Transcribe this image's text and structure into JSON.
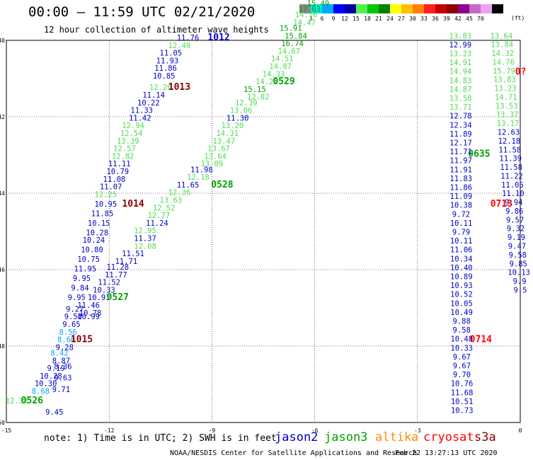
{
  "title": "00:00 – 11:59 UTC 02/21/2020",
  "subtitle": "12 hour collection of altimeter wave heights",
  "colorbar": {
    "colors": [
      "#888888",
      "#00e8e8",
      "#00a8ff",
      "#0000ff",
      "#0000a0",
      "#50f050",
      "#00c800",
      "#008000",
      "#ffff00",
      "#ffc000",
      "#ff8000",
      "#ff2020",
      "#c80000",
      "#900000",
      "#900090",
      "#c868c8",
      "#f0a0f0",
      "#000000"
    ],
    "labels": [
      "3",
      "6",
      "9",
      "12",
      "15",
      "18",
      "21",
      "24",
      "27",
      "30",
      "33",
      "36",
      "39",
      "42",
      "45",
      "70"
    ],
    "unit": "(ft)"
  },
  "axes": {
    "x_ticks": [
      "-15",
      "-12",
      "-9",
      "-6",
      "-3",
      "0"
    ],
    "y_ticks": [
      "-40",
      "-42",
      "-44",
      "-46",
      "-48",
      "-50"
    ]
  },
  "satellite_colors": {
    "jason2": "#0000c8",
    "jason3": "#00a000",
    "altika": "#ff8c00",
    "cryosat": "#ff0000",
    "s3a": "#8b0000",
    "jason2_light": "#00a8ff",
    "jason3_light": "#50dc50"
  },
  "tracks": [
    {
      "sat": "jason2",
      "time": "1012",
      "time_at": [
        -8.8,
        -40
      ],
      "points": [
        {
          "v": "11.76",
          "lon": -9.7,
          "lat": -40.0,
          "c": "jason2"
        },
        {
          "v": "12.49",
          "lon": -9.95,
          "lat": -40.2,
          "c": "jason3_light"
        },
        {
          "v": "11.05",
          "lon": -10.2,
          "lat": -40.4,
          "c": "jason2"
        },
        {
          "v": "11.93",
          "lon": -10.3,
          "lat": -40.6,
          "c": "jason2"
        },
        {
          "v": "11.86",
          "lon": -10.35,
          "lat": -40.8,
          "c": "jason2"
        },
        {
          "v": "10.85",
          "lon": -10.4,
          "lat": -41.0,
          "c": "jason2"
        },
        {
          "v": "12.20",
          "lon": -10.5,
          "lat": -41.3,
          "c": "jason3_light"
        },
        {
          "v": "11.14",
          "lon": -10.7,
          "lat": -41.5,
          "c": "jason2"
        },
        {
          "v": "10.22",
          "lon": -10.85,
          "lat": -41.7,
          "c": "jason2"
        },
        {
          "v": "11.33",
          "lon": -11.05,
          "lat": -41.9,
          "c": "jason2"
        },
        {
          "v": "11.42",
          "lon": -11.1,
          "lat": -42.1,
          "c": "jason2"
        },
        {
          "v": "12.94",
          "lon": -11.3,
          "lat": -42.3,
          "c": "jason3_light"
        },
        {
          "v": "12.54",
          "lon": -11.35,
          "lat": -42.5,
          "c": "jason3_light"
        },
        {
          "v": "13.39",
          "lon": -11.45,
          "lat": -42.7,
          "c": "jason3_light"
        },
        {
          "v": "12.57",
          "lon": -11.55,
          "lat": -42.9,
          "c": "jason3_light"
        },
        {
          "v": "12.82",
          "lon": -11.6,
          "lat": -43.1,
          "c": "jason3_light"
        },
        {
          "v": "11.11",
          "lon": -11.7,
          "lat": -43.3,
          "c": "jason2"
        },
        {
          "v": "10.79",
          "lon": -11.75,
          "lat": -43.5,
          "c": "jason2"
        },
        {
          "v": "11.08",
          "lon": -11.85,
          "lat": -43.7,
          "c": "jason2"
        },
        {
          "v": "11.07",
          "lon": -11.95,
          "lat": -43.9,
          "c": "jason2"
        },
        {
          "v": "12.25",
          "lon": -12.1,
          "lat": -44.1,
          "c": "jason3_light"
        },
        {
          "v": "10.95",
          "lon": -12.1,
          "lat": -44.35,
          "c": "jason2"
        },
        {
          "v": "11.85",
          "lon": -12.2,
          "lat": -44.6,
          "c": "jason2"
        },
        {
          "v": "10.15",
          "lon": -12.3,
          "lat": -44.85,
          "c": "jason2"
        },
        {
          "v": "10.28",
          "lon": -12.35,
          "lat": -45.1,
          "c": "jason2"
        },
        {
          "v": "10.24",
          "lon": -12.45,
          "lat": -45.3,
          "c": "jason2"
        },
        {
          "v": "10.80",
          "lon": -12.5,
          "lat": -45.55,
          "c": "jason2"
        },
        {
          "v": "10.75",
          "lon": -12.6,
          "lat": -45.8,
          "c": "jason2"
        },
        {
          "v": "11.95",
          "lon": -12.7,
          "lat": -46.05,
          "c": "jason2"
        },
        {
          "v": "9.95",
          "lon": -12.8,
          "lat": -46.3,
          "c": "jason2"
        },
        {
          "v": "9.84",
          "lon": -12.85,
          "lat": -46.55,
          "c": "jason2"
        },
        {
          "v": "9.95",
          "lon": -12.95,
          "lat": -46.8,
          "c": "jason2"
        },
        {
          "v": "9.27",
          "lon": -13.0,
          "lat": -47.1,
          "c": "jason2"
        },
        {
          "v": "9.50",
          "lon": -13.05,
          "lat": -47.3,
          "c": "jason2"
        },
        {
          "v": "9.65",
          "lon": -13.1,
          "lat": -47.5,
          "c": "jason2"
        },
        {
          "v": "8.56",
          "lon": -13.2,
          "lat": -47.7,
          "c": "jason2_light"
        },
        {
          "v": "8.66",
          "lon": -13.25,
          "lat": -47.9,
          "c": "jason2_light"
        },
        {
          "v": "9.28",
          "lon": -13.3,
          "lat": -48.1,
          "c": "jason2"
        },
        {
          "v": "8.42",
          "lon": -13.45,
          "lat": -48.25,
          "c": "jason2_light"
        },
        {
          "v": "8.87",
          "lon": -13.4,
          "lat": -48.45,
          "c": "jason2"
        },
        {
          "v": "8.36",
          "lon": -13.35,
          "lat": -48.6,
          "c": "jason2"
        },
        {
          "v": "9.19",
          "lon": -13.55,
          "lat": -48.65,
          "c": "jason2"
        },
        {
          "v": "10.28",
          "lon": -13.7,
          "lat": -48.85,
          "c": "jason2"
        },
        {
          "v": "9.63",
          "lon": -13.35,
          "lat": -48.9,
          "c": "jason2"
        },
        {
          "v": "10.30",
          "lon": -13.85,
          "lat": -49.05,
          "c": "jason2"
        },
        {
          "v": "8.68",
          "lon": -14.0,
          "lat": -49.25,
          "c": "jason2_light"
        },
        {
          "v": "9.71",
          "lon": -13.4,
          "lat": -49.2,
          "c": "jason2"
        },
        {
          "v": "12.33",
          "lon": -14.7,
          "lat": -49.5,
          "c": "jason3_light"
        },
        {
          "v": "9.45",
          "lon": -13.6,
          "lat": -49.8,
          "c": "jason2"
        }
      ]
    },
    {
      "sat": "s3a",
      "time": "1013",
      "time_at": [
        -9.95,
        -41.3
      ],
      "points": []
    },
    {
      "sat": "s3a",
      "time": "1014",
      "time_at": [
        -11.3,
        -44.35
      ],
      "points": []
    },
    {
      "sat": "s3a",
      "time": "1015",
      "time_at": [
        -12.8,
        -47.9
      ],
      "points": []
    },
    {
      "sat": "jason3",
      "time": "0526",
      "time_at": [
        -14.25,
        -49.5
      ],
      "points": [
        {
          "v": "11.46",
          "lon": -12.6,
          "lat": -47.0,
          "c": "jason2"
        },
        {
          "v": "10.78",
          "lon": -12.55,
          "lat": -47.2,
          "c": "jason2"
        },
        {
          "v": "10.91",
          "lon": -12.3,
          "lat": -46.8,
          "c": "jason2"
        },
        {
          "v": "10.99",
          "lon": -12.6,
          "lat": -47.3,
          "c": "jason2"
        },
        {
          "v": "10.33",
          "lon": -12.15,
          "lat": -46.6,
          "c": "jason2"
        }
      ]
    },
    {
      "sat": "jason3",
      "time": "0527",
      "time_at": [
        -11.75,
        -46.8
      ],
      "points": [
        {
          "v": "11.52",
          "lon": -12.0,
          "lat": -46.4,
          "c": "jason2"
        },
        {
          "v": "11.77",
          "lon": -11.8,
          "lat": -46.2,
          "c": "jason2"
        },
        {
          "v": "11.28",
          "lon": -11.75,
          "lat": -46.0,
          "c": "jason2"
        },
        {
          "v": "11.71",
          "lon": -11.5,
          "lat": -45.85,
          "c": "jason2"
        },
        {
          "v": "11.51",
          "lon": -11.3,
          "lat": -45.65,
          "c": "jason2"
        },
        {
          "v": "12.08",
          "lon": -10.95,
          "lat": -45.45,
          "c": "jason3_light"
        },
        {
          "v": "11.37",
          "lon": -10.95,
          "lat": -45.25,
          "c": "jason2"
        },
        {
          "v": "12.95",
          "lon": -10.95,
          "lat": -45.05,
          "c": "jason3_light"
        },
        {
          "v": "11.24",
          "lon": -10.6,
          "lat": -44.85,
          "c": "jason2"
        },
        {
          "v": "12.77",
          "lon": -10.55,
          "lat": -44.65,
          "c": "jason3_light"
        },
        {
          "v": "12.52",
          "lon": -10.4,
          "lat": -44.45,
          "c": "jason3_light"
        },
        {
          "v": "13.63",
          "lon": -10.2,
          "lat": -44.25,
          "c": "jason3_light"
        },
        {
          "v": "12.36",
          "lon": -9.95,
          "lat": -44.05,
          "c": "jason3_light"
        },
        {
          "v": "11.65",
          "lon": -9.7,
          "lat": -43.85,
          "c": "jason2"
        },
        {
          "v": "12.18",
          "lon": -9.4,
          "lat": -43.65,
          "c": "jason3_light"
        },
        {
          "v": "11.98",
          "lon": -9.3,
          "lat": -43.45,
          "c": "jason2"
        },
        {
          "v": "13.09",
          "lon": -9.0,
          "lat": -43.3,
          "c": "jason3_light"
        },
        {
          "v": "13.64",
          "lon": -8.9,
          "lat": -43.1,
          "c": "jason3_light"
        },
        {
          "v": "13.67",
          "lon": -8.8,
          "lat": -42.9,
          "c": "jason3_light"
        },
        {
          "v": "13.47",
          "lon": -8.65,
          "lat": -42.7,
          "c": "jason3_light"
        },
        {
          "v": "14.31",
          "lon": -8.55,
          "lat": -42.5,
          "c": "jason3_light"
        },
        {
          "v": "13.20",
          "lon": -8.4,
          "lat": -42.3,
          "c": "jason3_light"
        },
        {
          "v": "11.30",
          "lon": -8.25,
          "lat": -42.1,
          "c": "jason2"
        },
        {
          "v": "13.06",
          "lon": -8.15,
          "lat": -41.9,
          "c": "jason3_light"
        },
        {
          "v": "12.39",
          "lon": -8.0,
          "lat": -41.7,
          "c": "jason3_light"
        }
      ]
    },
    {
      "sat": "jason3",
      "time": "0528",
      "time_at": [
        -8.7,
        -43.85
      ],
      "points": [
        {
          "v": "12.82",
          "lon": -7.65,
          "lat": -41.55,
          "c": "jason3_light"
        },
        {
          "v": "15.15",
          "lon": -7.75,
          "lat": -41.35,
          "c": "jason3"
        },
        {
          "v": "14.22",
          "lon": -7.4,
          "lat": -41.15,
          "c": "jason3_light"
        },
        {
          "v": "14.33",
          "lon": -7.2,
          "lat": -40.95,
          "c": "jason3_light"
        },
        {
          "v": "14.87",
          "lon": -7.0,
          "lat": -40.75,
          "c": "jason3_light"
        },
        {
          "v": "14.51",
          "lon": -6.95,
          "lat": -40.55,
          "c": "jason3_light"
        },
        {
          "v": "14.67",
          "lon": -6.75,
          "lat": -40.35,
          "c": "jason3_light"
        },
        {
          "v": "16.74",
          "lon": -6.65,
          "lat": -40.15,
          "c": "jason3"
        },
        {
          "v": "15.84",
          "lon": -6.55,
          "lat": -39.95,
          "c": "jason3"
        },
        {
          "v": "15.91",
          "lon": -6.7,
          "lat": -39.75,
          "c": "jason3"
        },
        {
          "v": "14.47",
          "lon": -6.3,
          "lat": -39.6,
          "c": "jason3_light"
        },
        {
          "v": "14.76",
          "lon": -6.25,
          "lat": -39.4,
          "c": "jason3_light"
        },
        {
          "v": "17.03",
          "lon": -6.15,
          "lat": -39.25,
          "c": "jason3"
        },
        {
          "v": "15.49",
          "lon": -5.9,
          "lat": -39.1,
          "c": "jason3"
        }
      ]
    },
    {
      "sat": "jason3",
      "time": "0529",
      "time_at": [
        -6.9,
        -41.15
      ],
      "points": []
    },
    {
      "sat": "jason3",
      "time": "0635",
      "time_at": [
        -1.2,
        -43.05
      ],
      "points": []
    },
    {
      "sat": "cryosat",
      "time": "0713",
      "time_at": [
        -0.55,
        -44.35
      ],
      "points": []
    },
    {
      "sat": "cryosat",
      "time": "0714",
      "time_at": [
        -1.15,
        -47.9
      ],
      "points": []
    }
  ],
  "east_pass_a": [
    "13.83",
    "12.99",
    "13.23",
    "14.91",
    "14.94",
    "14.83",
    "14.87",
    "13.58",
    "13.71",
    "12.78",
    "12.34",
    "11.89",
    "12.17",
    "11.71",
    "11.97",
    "11.91",
    "11.83",
    "11.86",
    "11.09",
    "10.38",
    "9.72",
    "10.11",
    "9.79",
    "10.11",
    "11.06",
    "10.34",
    "10.40",
    "10.89",
    "10.93",
    "10.52",
    "10.05",
    "10.49",
    "9.88",
    "9.58",
    "10.48",
    "10.33",
    "9.67",
    "9.67",
    "9.70",
    "10.76",
    "11.68",
    "10.51",
    "10.73"
  ],
  "east_pass_b": [
    "13.64",
    "13.84",
    "14.32",
    "14.76",
    "15.79",
    "13.83",
    "13.23",
    "14.71",
    "13.53",
    "13.37",
    "13.17",
    "12.63",
    "12.18",
    "11.58",
    "11.39",
    "11.58",
    "11.22",
    "11.05",
    "11.10",
    "9.94",
    "9.86",
    "9.57",
    "9.32",
    "9.19",
    "9.47",
    "9.58",
    "9.85",
    "10.13",
    "9.9",
    "9.5"
  ],
  "legend": {
    "note": "note: 1) Time is in UTC; 2) SWH is in feet",
    "sats": [
      {
        "name": "jason2",
        "color": "#0000c8"
      },
      {
        "name": "jason3",
        "color": "#00a000"
      },
      {
        "name": "altika",
        "color": "#ff8c00"
      },
      {
        "name": "cryosat",
        "color": "#ff0000"
      },
      {
        "name": "s3a",
        "color": "#8b0000"
      }
    ]
  },
  "credit": "NOAA/NESDIS Center for Satellite Applications and Research",
  "stamp": "Feb 22 13:27:13 UTC 2020",
  "east_labels": [
    "0?"
  ]
}
